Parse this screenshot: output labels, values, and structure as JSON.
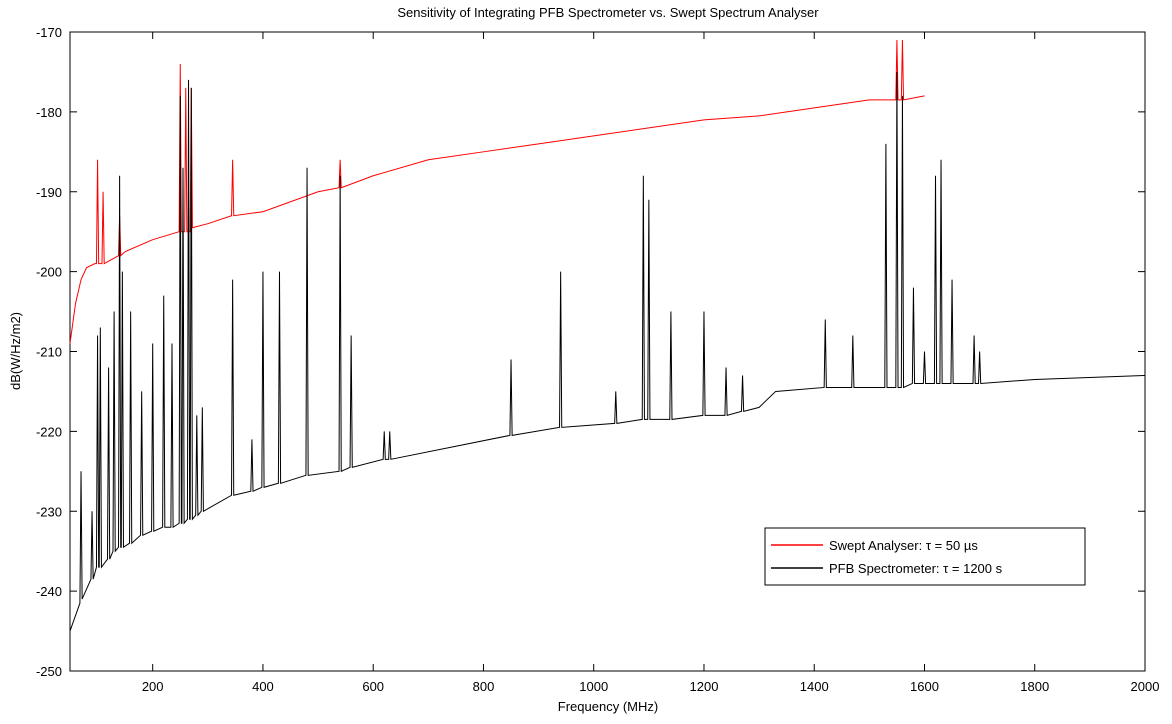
{
  "chart_data": {
    "type": "line",
    "title": "Sensitivity of Integrating PFB Spectrometer vs. Swept Spectrum Analyser",
    "x_label": "Frequency (MHz)",
    "y_label": "dB(W/Hz/m2)",
    "xlim": [
      50,
      2000
    ],
    "ylim": [
      -250,
      -170
    ],
    "xticks": [
      200,
      400,
      600,
      800,
      1000,
      1200,
      1400,
      1600,
      1800,
      2000
    ],
    "yticks": [
      -250,
      -240,
      -230,
      -220,
      -210,
      -200,
      -190,
      -180,
      -170
    ],
    "grid": false,
    "legend": "lower right",
    "series": [
      {
        "name": "Swept Analyser: τ = 50 µs",
        "color": "#ff0000",
        "x": [
          50,
          60,
          70,
          80,
          95,
          98,
          100,
          102,
          108,
          110,
          112,
          138,
          140,
          142,
          150,
          200,
          248,
          250,
          252,
          258,
          260,
          262,
          268,
          270,
          272,
          300,
          343,
          345,
          347,
          400,
          500,
          538,
          540,
          542,
          600,
          700,
          800,
          900,
          1000,
          1100,
          1200,
          1300,
          1400,
          1500,
          1548,
          1550,
          1552,
          1558,
          1560,
          1562,
          1600
        ],
        "values": [
          -209,
          -204,
          -201,
          -199.5,
          -199,
          -199,
          -186,
          -199,
          -199,
          -190,
          -199,
          -198,
          -193,
          -198,
          -197.5,
          -196,
          -195,
          -174,
          -195,
          -195,
          -177,
          -195,
          -195,
          -177,
          -194.5,
          -194,
          -193,
          -186,
          -193,
          -192.5,
          -190,
          -189.5,
          -186,
          -189.5,
          -188,
          -186,
          -185,
          -184,
          -183,
          -182,
          -181,
          -180.5,
          -179.5,
          -178.5,
          -178.5,
          -171,
          -178.5,
          -178.5,
          -171,
          -178.5,
          -178
        ]
      },
      {
        "name": "PFB Spectrometer: τ = 1200 s",
        "color": "#000000",
        "x": [
          50,
          68,
          70,
          72,
          88,
          90,
          92,
          98,
          100,
          102,
          103,
          105,
          107,
          118,
          120,
          122,
          128,
          130,
          132,
          138,
          140,
          142,
          143,
          145,
          147,
          158,
          160,
          162,
          178,
          180,
          182,
          198,
          200,
          202,
          218,
          220,
          222,
          233,
          235,
          237,
          248,
          250,
          252,
          253,
          255,
          257,
          263,
          265,
          267,
          268,
          270,
          272,
          278,
          280,
          282,
          288,
          290,
          292,
          343,
          345,
          347,
          378,
          380,
          382,
          398,
          400,
          402,
          428,
          430,
          432,
          478,
          480,
          482,
          538,
          540,
          542,
          558,
          560,
          562,
          618,
          620,
          622,
          628,
          630,
          632,
          848,
          850,
          852,
          938,
          940,
          942,
          1038,
          1040,
          1042,
          1088,
          1090,
          1092,
          1098,
          1100,
          1102,
          1138,
          1140,
          1142,
          1198,
          1200,
          1202,
          1238,
          1240,
          1242,
          1268,
          1270,
          1272,
          1300,
          1330,
          1418,
          1420,
          1422,
          1468,
          1470,
          1472,
          1528,
          1530,
          1532,
          1548,
          1550,
          1552,
          1558,
          1560,
          1562,
          1578,
          1580,
          1582,
          1598,
          1600,
          1602,
          1618,
          1620,
          1622,
          1628,
          1630,
          1632,
          1648,
          1650,
          1652,
          1688,
          1690,
          1692,
          1698,
          1700,
          1702,
          1800,
          2000
        ],
        "values": [
          -245,
          -241.5,
          -225,
          -241,
          -238.5,
          -230,
          -238.5,
          -237,
          -208,
          -237,
          -237,
          -207,
          -237,
          -236,
          -212,
          -236,
          -235,
          -205,
          -235,
          -234.5,
          -188,
          -234.5,
          -234.5,
          -200,
          -234.5,
          -234,
          -205,
          -234,
          -233,
          -215,
          -233,
          -232.5,
          -209,
          -232.5,
          -232,
          -203,
          -232,
          -232,
          -209,
          -232,
          -231.5,
          -178,
          -231.5,
          -231.5,
          -187,
          -231.5,
          -231,
          -176,
          -231,
          -231,
          -177,
          -231,
          -230.5,
          -218,
          -230.5,
          -230,
          -217,
          -230,
          -228,
          -201,
          -228,
          -227.5,
          -221,
          -227.5,
          -227,
          -200,
          -227,
          -226.5,
          -200,
          -226.5,
          -225.5,
          -187,
          -225.5,
          -225,
          -188,
          -225,
          -224.5,
          -208,
          -224.5,
          -223.5,
          -220,
          -223.5,
          -223.5,
          -220,
          -223.5,
          -220.5,
          -211,
          -220.5,
          -219.5,
          -200,
          -219.5,
          -219,
          -215,
          -219,
          -218.5,
          -188,
          -218.5,
          -218.5,
          -191,
          -218.5,
          -218.5,
          -205,
          -218.5,
          -218,
          -205,
          -218,
          -218,
          -212,
          -218,
          -217.5,
          -213,
          -217.5,
          -217,
          -215,
          -214.5,
          -206,
          -214.5,
          -214.5,
          -208,
          -214.5,
          -214.5,
          -184,
          -214.5,
          -214.5,
          -175,
          -214.5,
          -214.5,
          -178,
          -214.5,
          -214,
          -202,
          -214,
          -214,
          -210,
          -214,
          -214,
          -188,
          -214,
          -214,
          -186,
          -214,
          -214,
          -201,
          -214,
          -214,
          -208,
          -214,
          -214,
          -210,
          -214,
          -213.5,
          -213
        ]
      }
    ]
  }
}
